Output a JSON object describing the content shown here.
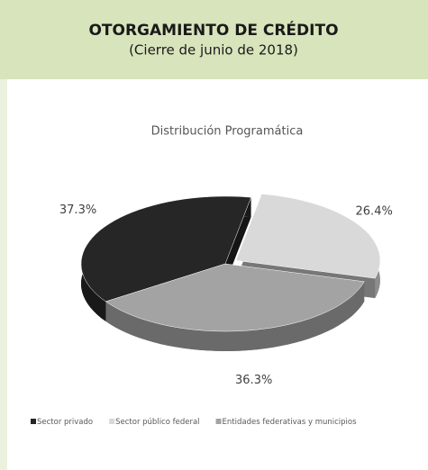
{
  "header": {
    "title": "OTORGAMIENTO DE CRÉDITO",
    "subtitle": "(Cierre de junio de 2018)"
  },
  "chart_data": {
    "type": "pie",
    "title": "Distribución Programática",
    "categories": [
      "Sector privado",
      "Sector público federal",
      "Entidades federativas y municipios"
    ],
    "values": [
      37.3,
      26.4,
      36.3
    ],
    "value_labels": [
      "37.3%",
      "26.4%",
      "36.3%"
    ],
    "colors": [
      "#262626",
      "#d9d9d9",
      "#a3a3a3"
    ],
    "legend": "bottom"
  }
}
